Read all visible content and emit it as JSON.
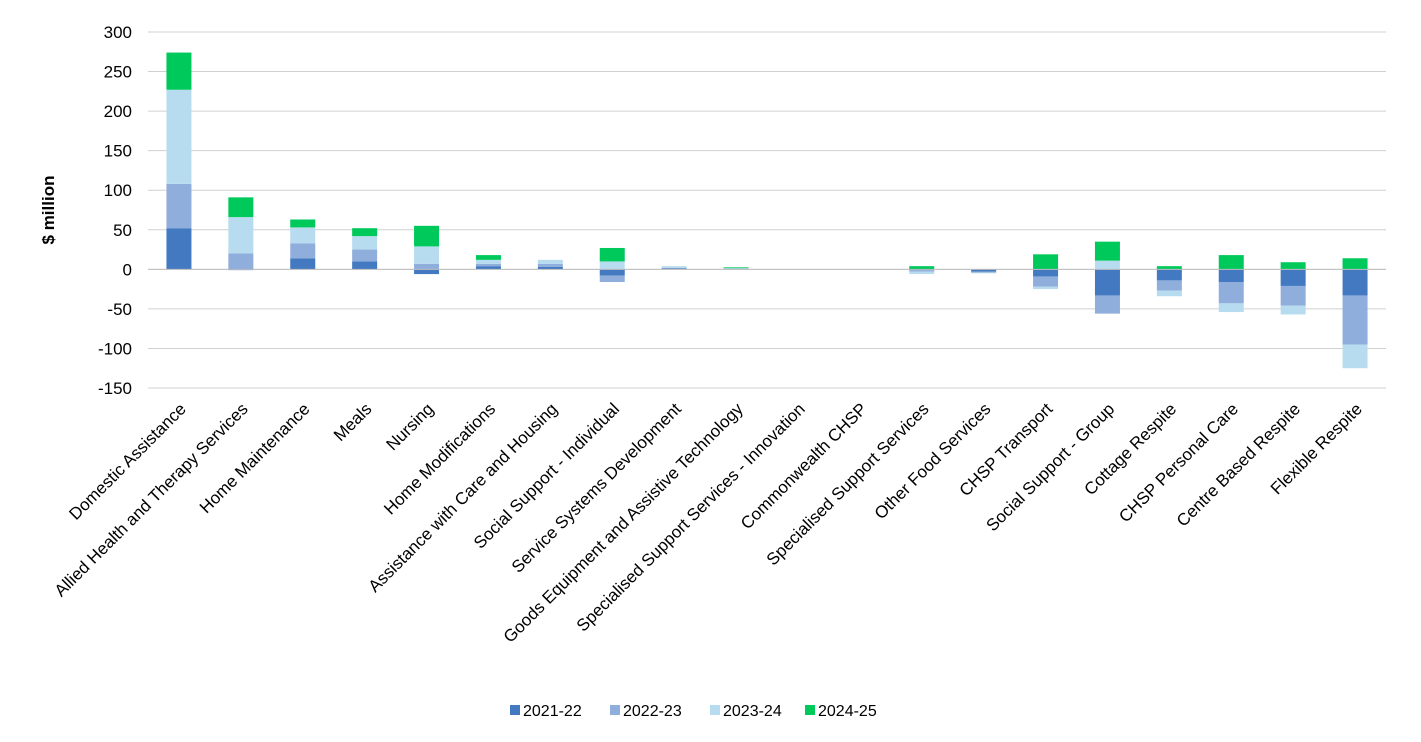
{
  "chart_data": {
    "type": "bar",
    "stacked": true,
    "title": "",
    "xlabel": "",
    "ylabel": "$ million",
    "ylim": [
      -150,
      300
    ],
    "yticks": [
      300,
      250,
      200,
      150,
      100,
      50,
      0,
      -50,
      -100,
      -150
    ],
    "grid": true,
    "legend_position": "bottom",
    "categories": [
      "Domestic Assistance",
      "Allied Health and Therapy Services",
      "Home Maintenance",
      "Meals",
      "Nursing",
      "Home Modifications",
      "Assistance with Care and Housing",
      "Social Support - Individual",
      "Service Systems Development",
      "Goods Equipment and Assistive Technology",
      "Specialised Support Services - Innovation",
      "Commonwealth CHSP",
      "Specialised Support Services",
      "Other Food Services",
      "CHSP Transport",
      "Social Support - Group",
      "Cottage Respite",
      "CHSP Personal Care",
      "Centre Based Respite",
      "Flexible Respite"
    ],
    "series": [
      {
        "name": "2021-22",
        "color": "#4279c1",
        "values": [
          52,
          -1,
          14,
          10,
          -6,
          4,
          3,
          -8,
          1,
          0.5,
          0,
          0,
          -1,
          -3,
          -9,
          -33,
          -14,
          -16,
          -21,
          -33
        ]
      },
      {
        "name": "2022-23",
        "color": "#8faedb",
        "values": [
          56,
          20,
          19,
          15,
          7,
          3,
          4,
          -8,
          1,
          0.5,
          0,
          0,
          -2,
          -1,
          -13,
          -23,
          -13,
          -27,
          -25,
          -62
        ]
      },
      {
        "name": "2023-24",
        "color": "#b8dcef",
        "values": [
          119,
          46,
          20,
          17,
          22,
          5,
          5,
          10,
          2,
          0.5,
          0,
          0,
          -3,
          -1,
          -3,
          11,
          -7,
          -11,
          -11,
          -30
        ]
      },
      {
        "name": "2024-25",
        "color": "#00c95b",
        "values": [
          47,
          25,
          10,
          10,
          26,
          6,
          0,
          17,
          0,
          1,
          0,
          0,
          4,
          0,
          19,
          24,
          4,
          18,
          9,
          14
        ]
      }
    ]
  }
}
